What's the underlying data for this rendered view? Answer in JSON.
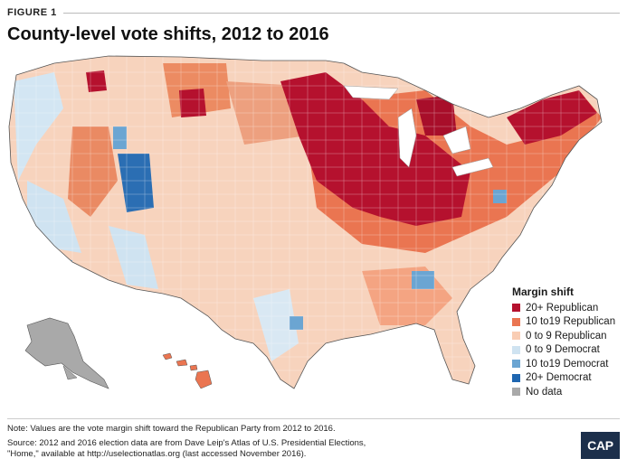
{
  "header": {
    "figure_label": "FIGURE 1",
    "title": "County-level vote shifts, 2012 to 2016"
  },
  "legend": {
    "title": "Margin shift",
    "items": [
      {
        "label": "20+ Republican",
        "color": "#b5112e"
      },
      {
        "label": "10 to19 Republican",
        "color": "#ea7551"
      },
      {
        "label": "0 to 9 Republican",
        "color": "#f9cdb4"
      },
      {
        "label": "0 to 9 Democrat",
        "color": "#cfe3f1"
      },
      {
        "label": "10 to19 Democrat",
        "color": "#6ba5d2"
      },
      {
        "label": "20+ Democrat",
        "color": "#1f66b0"
      },
      {
        "label": "No data",
        "color": "#a9a9a9"
      }
    ]
  },
  "notes": {
    "note": "Note: Values are the vote margin shift toward the Republican Party from 2012 to 2016.",
    "source_line1": "Source: 2012 and 2016 election data are from Dave Leip's Atlas of U.S. Presidential Elections,",
    "source_line2": "\"Home,\" available at http://uselectionatlas.org (last accessed November 2016)."
  },
  "logo": {
    "text": "CAP"
  }
}
